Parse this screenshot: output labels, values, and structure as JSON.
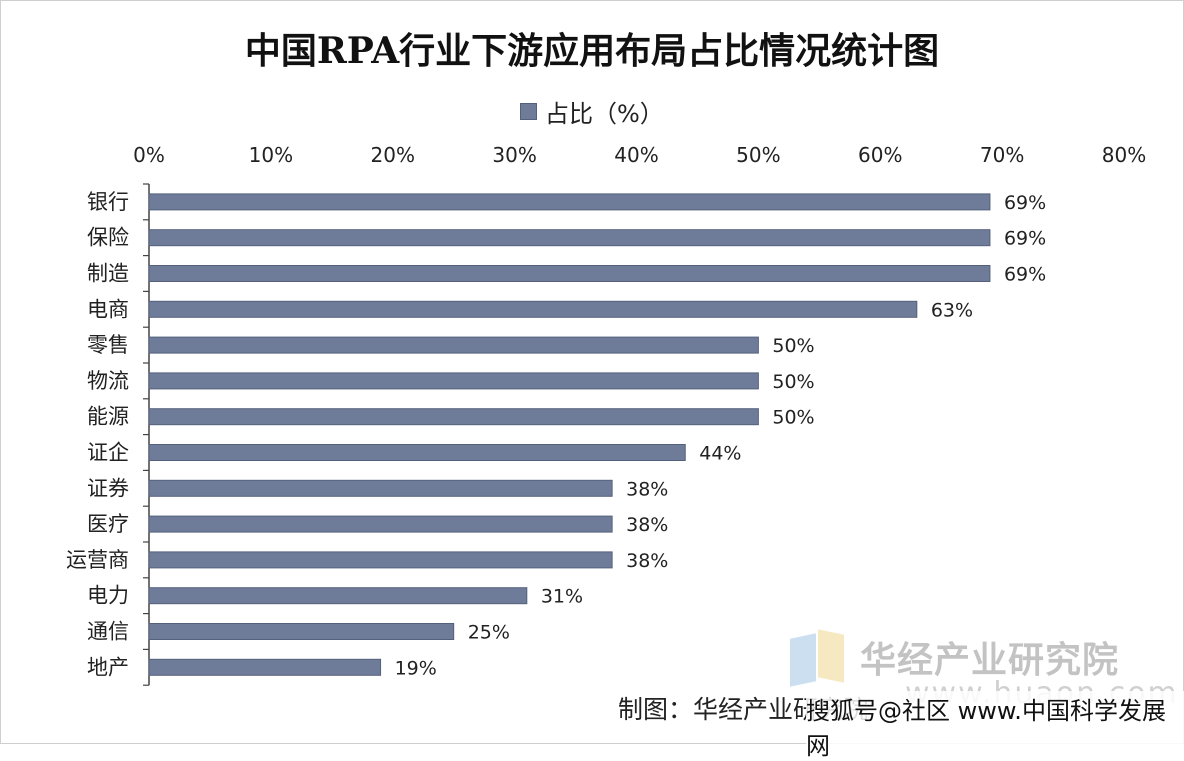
{
  "chart_data": {
    "type": "bar",
    "orientation": "horizontal",
    "title": "中国RPA行业下游应用布局占比情况统计图",
    "legend_position": "top",
    "series": [
      {
        "name": "占比（%）",
        "color": "#6f7c99",
        "values": [
          69,
          69,
          69,
          63,
          50,
          50,
          50,
          44,
          38,
          38,
          38,
          31,
          25,
          19
        ]
      }
    ],
    "categories": [
      "银行",
      "保险",
      "制造",
      "电商",
      "零售",
      "物流",
      "能源",
      "证企",
      "证券",
      "医疗",
      "运营商",
      "电力",
      "通信",
      "地产"
    ],
    "data_labels": [
      "69%",
      "69%",
      "69%",
      "63%",
      "50%",
      "50%",
      "50%",
      "44%",
      "38%",
      "38%",
      "38%",
      "31%",
      "25%",
      "19%"
    ],
    "xlim": [
      0,
      80
    ],
    "x_ticks": [
      "0%",
      "10%",
      "20%",
      "30%",
      "40%",
      "50%",
      "60%",
      "70%",
      "80%"
    ],
    "x_axis_position": "top",
    "grid": false
  },
  "watermark": {
    "name": "华经产业研究院",
    "url": "www.huaon.com"
  },
  "source": "制图：华经产业研究院",
  "overlay": "搜狐号@社区 www.中国科学发展网"
}
